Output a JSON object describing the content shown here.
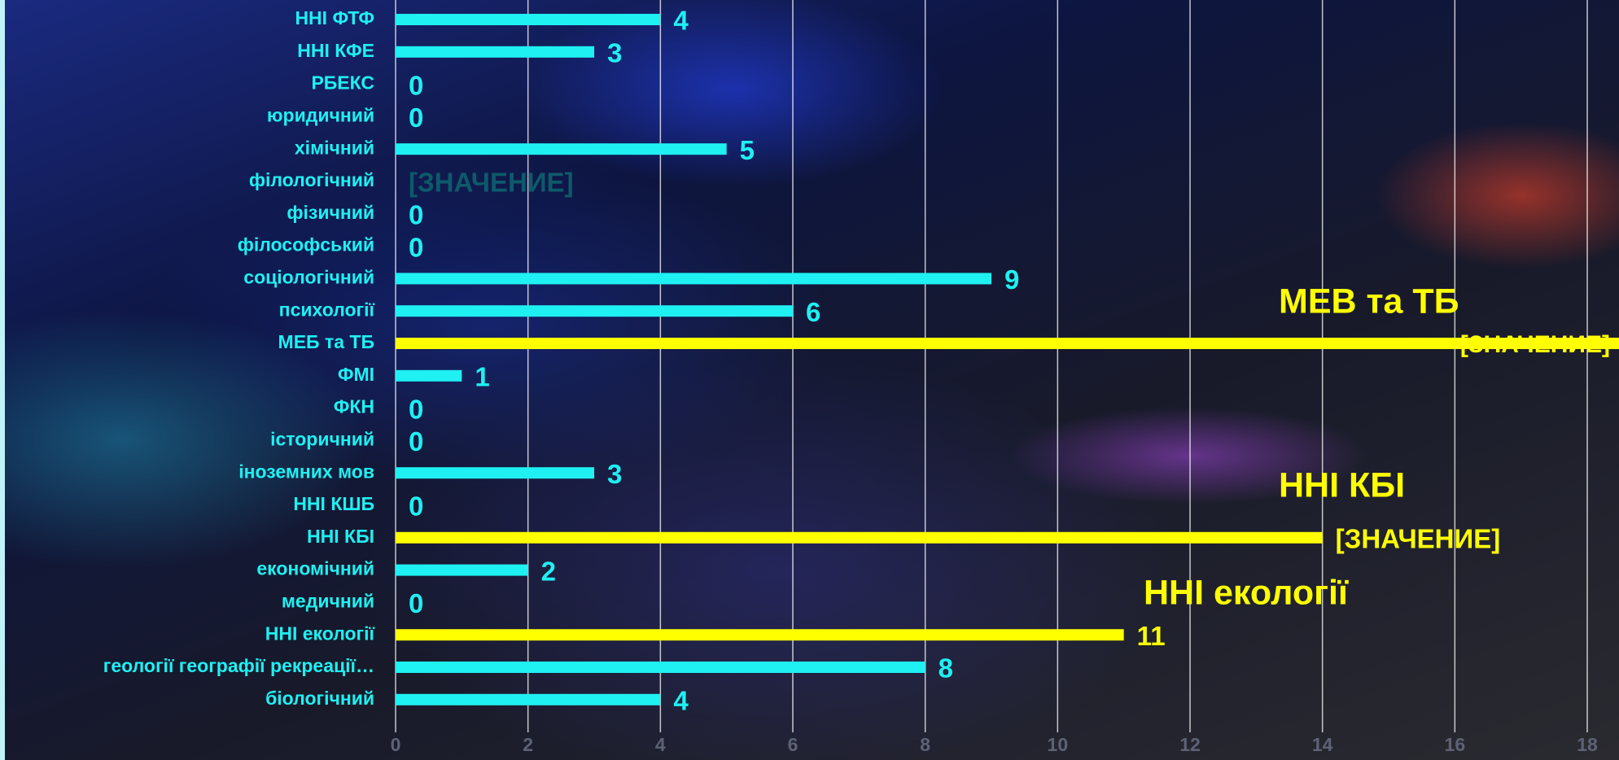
{
  "chart_data": {
    "type": "hbar",
    "categories": [
      "ННІ ФТФ",
      "ННІ КФЕ",
      "РБЕКС",
      "юридичний",
      "хімічний",
      "філологічний",
      "фізичний",
      "філософський",
      "соціологічний",
      "психології",
      "МЕБ та ТБ",
      "ФМІ",
      "ФКН",
      "історичний",
      "іноземних мов",
      "ННІ КШБ",
      "ННІ КБІ",
      "економічний",
      "медичний",
      "ННІ екології",
      "геології географії рекреації…",
      "біологічний"
    ],
    "values": [
      4,
      3,
      0,
      0,
      5,
      null,
      0,
      0,
      9,
      6,
      18.5,
      1,
      0,
      0,
      3,
      0,
      14,
      2,
      0,
      11,
      8,
      4
    ],
    "value_labels": [
      null,
      null,
      null,
      null,
      null,
      "[ЗНАЧЕНИЕ]",
      null,
      null,
      null,
      null,
      "[ЗНАЧЕНИЕ]",
      null,
      null,
      null,
      null,
      null,
      "[ЗНАЧЕНИЕ]",
      null,
      null,
      null,
      null,
      null
    ],
    "colors": [
      "#1ff0f2",
      "#1ff0f2",
      "#1ff0f2",
      "#1ff0f2",
      "#1ff0f2",
      "#0d5a6a",
      "#1ff0f2",
      "#1ff0f2",
      "#1ff0f2",
      "#1ff0f2",
      "#ffff00",
      "#1ff0f2",
      "#1ff0f2",
      "#1ff0f2",
      "#1ff0f2",
      "#1ff0f2",
      "#ffff00",
      "#1ff0f2",
      "#1ff0f2",
      "#ffff00",
      "#1ff0f2",
      "#1ff0f2"
    ],
    "annotations": [
      "МЕВ та ТБ",
      "ННІ КБІ",
      "ННІ екології"
    ],
    "annotation_color": "#ffff00",
    "xlim": [
      0,
      18
    ],
    "xticks": [
      0,
      2,
      4,
      6,
      8,
      10,
      12,
      14,
      16,
      18
    ],
    "grid": true
  }
}
